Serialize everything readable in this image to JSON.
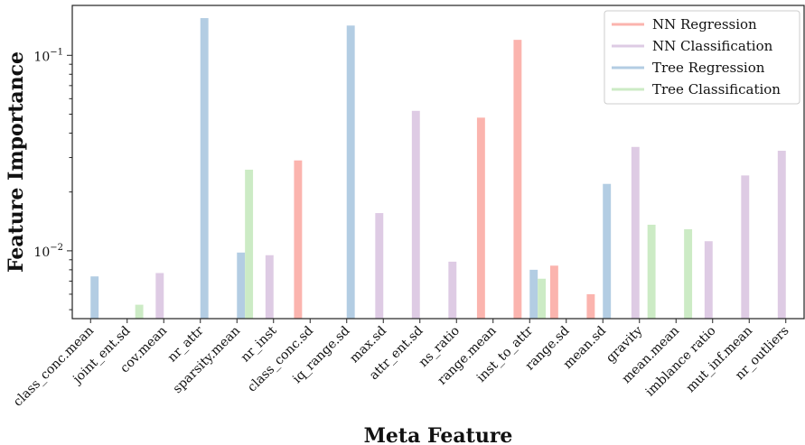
{
  "chart_data": {
    "type": "bar",
    "title": "",
    "xlabel": "Meta Feature",
    "ylabel": "Feature Importance",
    "yscale": "log",
    "ylim": [
      0.0045,
      0.18
    ],
    "yticks": [
      {
        "value": 0.01,
        "base": "10",
        "exp": "−2"
      },
      {
        "value": 0.1,
        "base": "10",
        "exp": "−1"
      }
    ],
    "legend_position": "top-right",
    "grid": false,
    "categories": [
      "class_conc.mean",
      "joint_ent.sd",
      "cov.mean",
      "nr_attr",
      "sparsity.mean",
      "nr_inst",
      "class_conc.sd",
      "iq_range.sd",
      "max.sd",
      "attr_ent.sd",
      "ns_ratio",
      "range.mean",
      "inst_to_attr",
      "range.sd",
      "mean.sd",
      "gravity",
      "mean.mean",
      "imblance ratio",
      "mut_inf.mean",
      "nr_outliers"
    ],
    "series": [
      {
        "name": "NN Regression",
        "color": "#fbb4ae",
        "values": [
          null,
          null,
          null,
          null,
          null,
          null,
          0.029,
          null,
          null,
          null,
          null,
          0.048,
          0.12,
          0.0084,
          0.006,
          null,
          null,
          null,
          null,
          null
        ]
      },
      {
        "name": "NN Classification",
        "color": "#decbe4",
        "values": [
          null,
          null,
          0.0077,
          null,
          null,
          0.0095,
          null,
          null,
          0.0156,
          0.052,
          0.0088,
          null,
          null,
          null,
          null,
          0.034,
          null,
          0.0112,
          0.0243,
          0.0325
        ]
      },
      {
        "name": "Tree Regression",
        "color": "#b3cde3",
        "values": [
          0.0074,
          null,
          null,
          0.155,
          0.0098,
          null,
          null,
          0.142,
          null,
          null,
          null,
          null,
          0.008,
          null,
          0.022,
          null,
          null,
          null,
          null,
          null
        ]
      },
      {
        "name": "Tree Classification",
        "color": "#ccebc5",
        "values": [
          null,
          0.0053,
          null,
          null,
          0.026,
          null,
          null,
          null,
          null,
          null,
          null,
          null,
          0.0072,
          null,
          null,
          0.0136,
          0.0129,
          null,
          null,
          null
        ]
      }
    ]
  }
}
